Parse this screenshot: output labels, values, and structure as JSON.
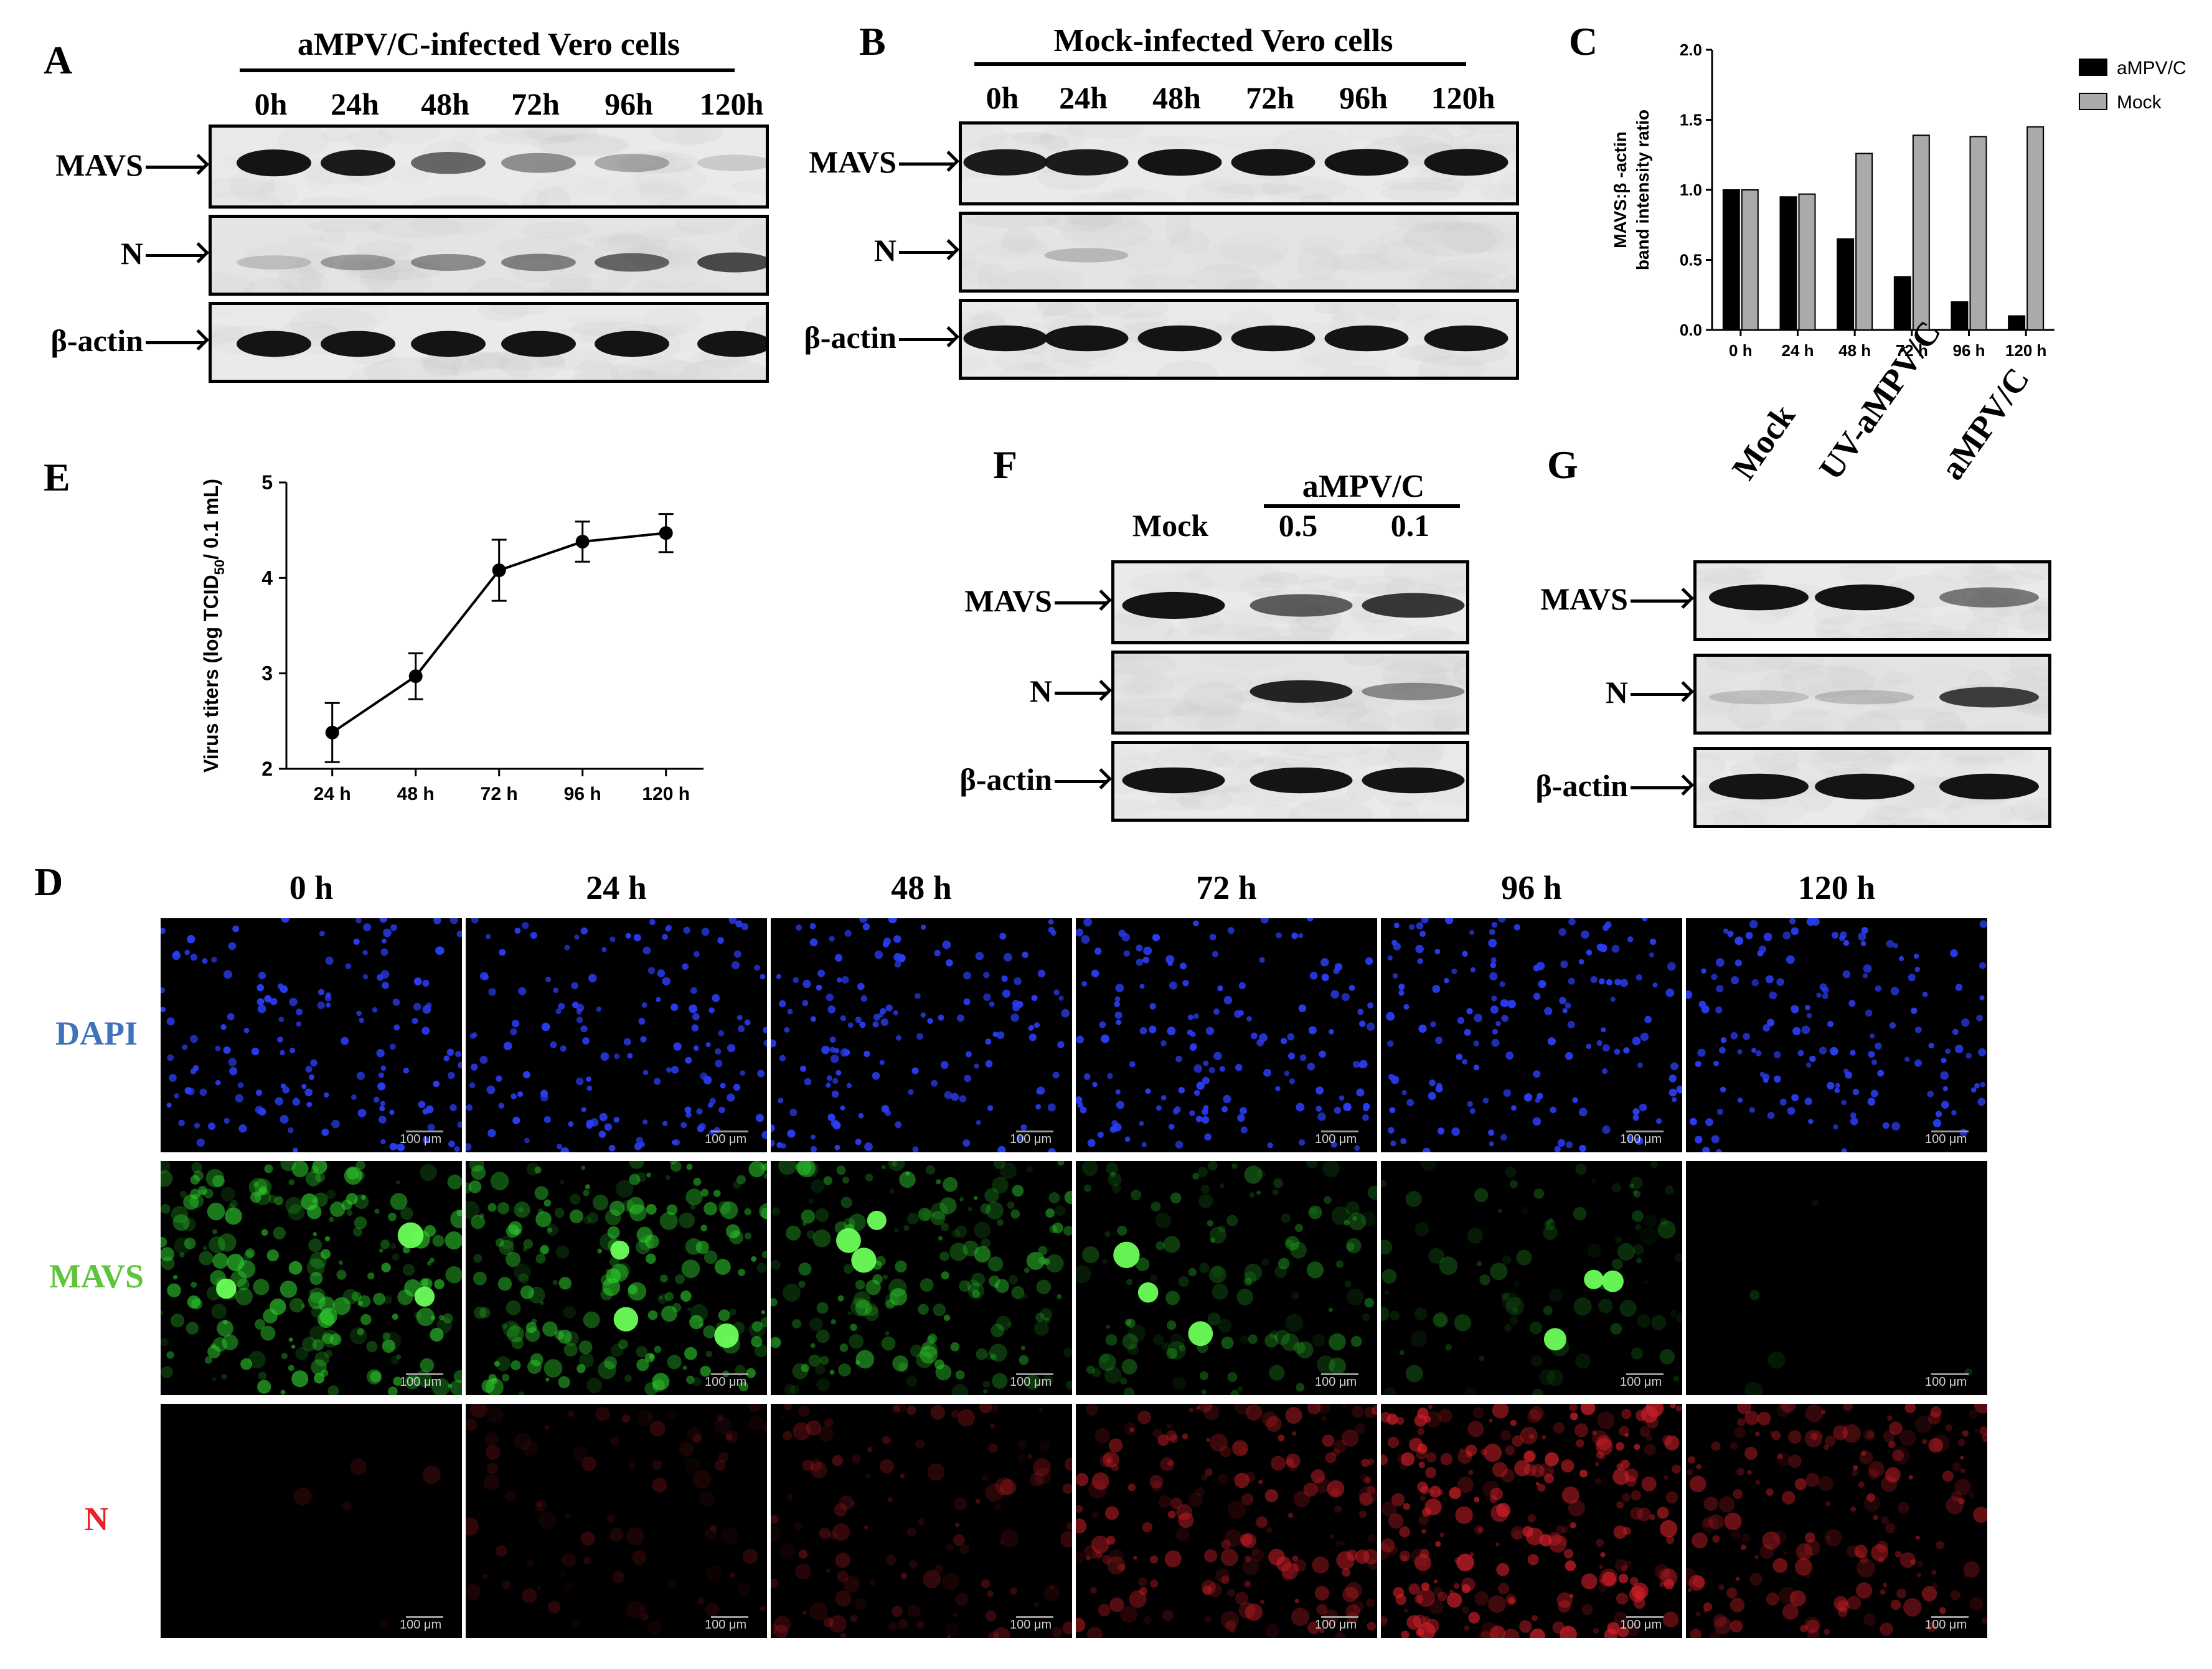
{
  "panel_A": {
    "letter": "A",
    "header": "aMPV/C-infected Vero cells",
    "lanes": [
      "0h",
      "24h",
      "48h",
      "72h",
      "96h",
      "120h"
    ],
    "rows": [
      "MAVS",
      "N",
      "β-actin"
    ],
    "band_intensity": {
      "MAVS": [
        1.0,
        0.95,
        0.55,
        0.35,
        0.2,
        0.03
      ],
      "N": [
        0.05,
        0.25,
        0.35,
        0.4,
        0.55,
        0.7
      ],
      "β-actin": [
        1,
        1,
        1,
        1,
        1,
        1
      ]
    }
  },
  "panel_B": {
    "letter": "B",
    "header": "Mock-infected Vero cells",
    "lanes": [
      "0h",
      "24h",
      "48h",
      "72h",
      "96h",
      "120h"
    ],
    "rows": [
      "MAVS",
      "N",
      "β-actin"
    ],
    "band_intensity": {
      "MAVS": [
        0.95,
        0.95,
        1,
        1,
        1,
        1
      ],
      "N": [
        0,
        0.1,
        0,
        0,
        0,
        0
      ],
      "β-actin": [
        1,
        1,
        1,
        1,
        1,
        1
      ]
    }
  },
  "panel_C": {
    "letter": "C",
    "chart_data": {
      "type": "bar",
      "ylabel_line1": "MAVS:β -actin",
      "ylabel_line2": "band intensity ratio",
      "categories": [
        "0 h",
        "24 h",
        "48 h",
        "72 h",
        "96 h",
        "120 h"
      ],
      "ylim": [
        0,
        2.0
      ],
      "yticks": [
        "0.0",
        "0.5",
        "1.0",
        "1.5",
        "2.0"
      ],
      "legend_position": "top-right",
      "series": [
        {
          "name": "aMPV/C",
          "color": "#000000",
          "values": [
            1.0,
            0.95,
            0.65,
            0.38,
            0.2,
            0.1
          ]
        },
        {
          "name": "Mock",
          "color": "#aaaaaa",
          "values": [
            1.0,
            0.97,
            1.26,
            1.39,
            1.38,
            1.45
          ]
        }
      ]
    }
  },
  "panel_E": {
    "letter": "E",
    "chart_data": {
      "type": "line",
      "ylabel_main": "Virus titers (log TCID",
      "ylabel_sub": "50",
      "ylabel_end": "/ 0.1 mL)",
      "categories": [
        "24 h",
        "48 h",
        "72 h",
        "96 h",
        "120 h"
      ],
      "values": [
        2.38,
        2.97,
        4.08,
        4.38,
        4.47
      ],
      "errors": [
        0.31,
        0.24,
        0.32,
        0.21,
        0.2
      ],
      "ylim": [
        2,
        5
      ],
      "yticks": [
        "2",
        "3",
        "4",
        "5"
      ]
    }
  },
  "panel_F": {
    "letter": "F",
    "header": "aMPV/C",
    "lanes": [
      "Mock",
      "0.5",
      "0.1"
    ],
    "rows": [
      "MAVS",
      "N",
      "β-actin"
    ],
    "band_intensity": {
      "MAVS": [
        1.0,
        0.6,
        0.8
      ],
      "N": [
        0.0,
        0.9,
        0.35
      ],
      "β-actin": [
        1,
        1,
        1
      ]
    }
  },
  "panel_G": {
    "letter": "G",
    "lanes": [
      "Mock",
      "UV-aMPV/C",
      "aMPV/C"
    ],
    "rows": [
      "MAVS",
      "N",
      "β-actin"
    ],
    "band_intensity": {
      "MAVS": [
        1.0,
        1.0,
        0.45
      ],
      "N": [
        0.05,
        0.08,
        0.75
      ],
      "β-actin": [
        1,
        1,
        1
      ]
    }
  },
  "panel_D": {
    "letter": "D",
    "timepoints": [
      "0 h",
      "24 h",
      "48 h",
      "72 h",
      "96 h",
      "120 h"
    ],
    "rows": [
      {
        "label": "DAPI",
        "label_color": "#3f72b8",
        "signal_color": "#2a3cf0"
      },
      {
        "label": "MAVS",
        "label_color": "#5ec43a",
        "signal_color": "#2fd42f"
      },
      {
        "label": "N",
        "label_color": "#e8222a",
        "signal_color": "#d8202a"
      }
    ],
    "scale_bar_text": "100 μm",
    "signal_level": {
      "DAPI": [
        0.8,
        0.8,
        0.8,
        0.8,
        0.8,
        0.85
      ],
      "MAVS": [
        0.85,
        0.8,
        0.7,
        0.5,
        0.35,
        0.02
      ],
      "N": [
        0.02,
        0.3,
        0.45,
        0.7,
        0.95,
        0.7
      ]
    }
  }
}
